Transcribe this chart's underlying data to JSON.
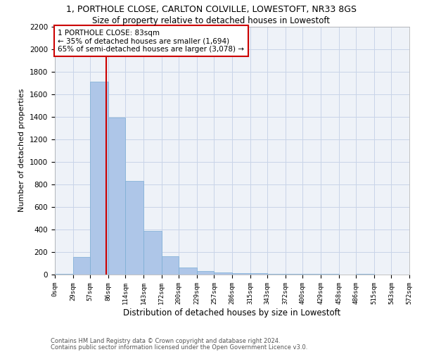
{
  "title_line1": "1, PORTHOLE CLOSE, CARLTON COLVILLE, LOWESTOFT, NR33 8GS",
  "title_line2": "Size of property relative to detached houses in Lowestoft",
  "xlabel": "Distribution of detached houses by size in Lowestoft",
  "ylabel": "Number of detached properties",
  "bar_color": "#aec6e8",
  "bar_edge_color": "#7aadd4",
  "bin_edges": [
    0,
    29,
    57,
    86,
    114,
    143,
    172,
    200,
    229,
    257,
    286,
    315,
    343,
    372,
    400,
    429,
    458,
    486,
    515,
    543,
    572
  ],
  "bin_labels": [
    "0sqm",
    "29sqm",
    "57sqm",
    "86sqm",
    "114sqm",
    "143sqm",
    "172sqm",
    "200sqm",
    "229sqm",
    "257sqm",
    "286sqm",
    "315sqm",
    "343sqm",
    "372sqm",
    "400sqm",
    "429sqm",
    "458sqm",
    "486sqm",
    "515sqm",
    "543sqm",
    "572sqm"
  ],
  "bar_heights": [
    5,
    155,
    1710,
    1390,
    830,
    390,
    165,
    60,
    30,
    20,
    15,
    10,
    5,
    5,
    5,
    5,
    0,
    5,
    0,
    0
  ],
  "property_label": "1 PORTHOLE CLOSE: 83sqm",
  "annotation_line2": "← 35% of detached houses are smaller (1,694)",
  "annotation_line3": "65% of semi-detached houses are larger (3,078) →",
  "red_line_x": 83,
  "ylim": [
    0,
    2200
  ],
  "yticks": [
    0,
    200,
    400,
    600,
    800,
    1000,
    1200,
    1400,
    1600,
    1800,
    2000,
    2200
  ],
  "footer_line1": "Contains HM Land Registry data © Crown copyright and database right 2024.",
  "footer_line2": "Contains public sector information licensed under the Open Government Licence v3.0.",
  "background_color": "#ffffff",
  "grid_color": "#c8d4e8",
  "axes_bg_color": "#eef2f8",
  "annotation_box_color": "#ffffff",
  "annotation_box_edge": "#cc0000",
  "title1_fontsize": 9,
  "title2_fontsize": 8.5,
  "ylabel_fontsize": 8,
  "xlabel_fontsize": 8.5,
  "xtick_fontsize": 6.5,
  "ytick_fontsize": 7.5,
  "ann_fontsize": 7.5,
  "footer_fontsize": 6
}
